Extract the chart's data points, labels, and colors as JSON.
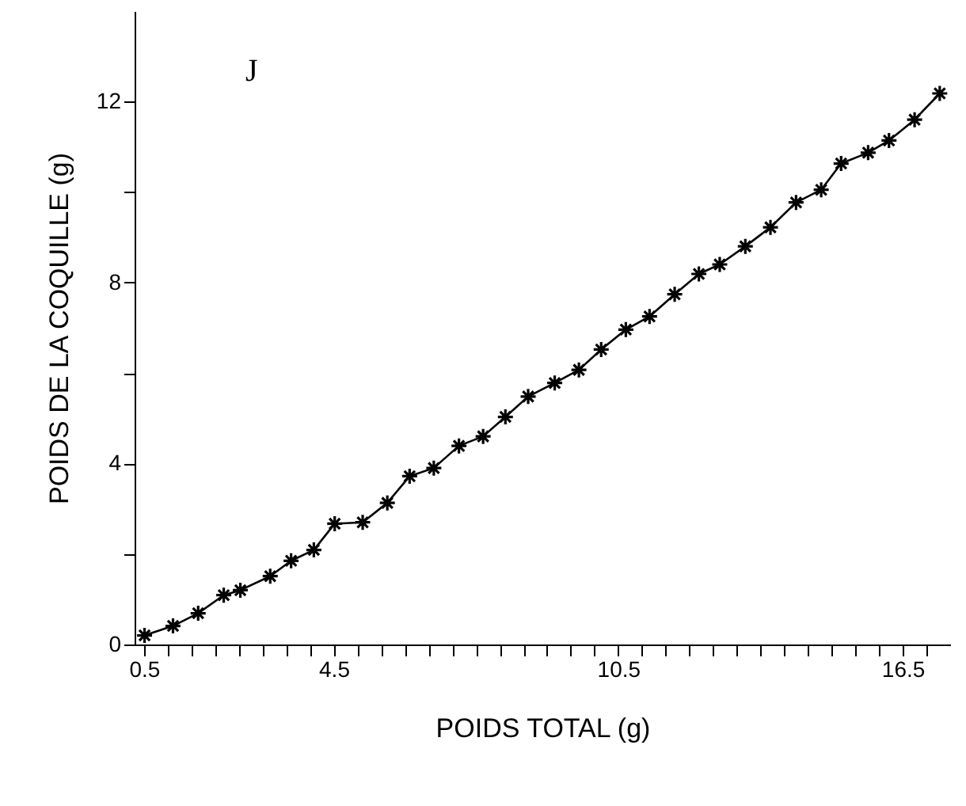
{
  "chart_data": {
    "type": "line",
    "xlabel": "POIDS TOTAL (g)",
    "ylabel": "POIDS DE LA COQUILLE (g)",
    "annotations": [
      "J"
    ],
    "marker": "cross",
    "line_style": "solid",
    "color": "#000000",
    "x": [
      0.51,
      1.11,
      1.64,
      2.18,
      2.53,
      3.16,
      3.6,
      4.08,
      4.52,
      5.11,
      5.63,
      6.1,
      6.61,
      7.14,
      7.65,
      8.12,
      8.6,
      9.16,
      9.67,
      10.14,
      10.66,
      11.16,
      11.69,
      12.2,
      12.64,
      13.18,
      13.71,
      14.25,
      14.78,
      15.2,
      15.77,
      16.21,
      16.75,
      17.28
    ],
    "values": [
      0.2,
      0.41,
      0.69,
      1.09,
      1.2,
      1.51,
      1.85,
      2.09,
      2.67,
      2.7,
      3.13,
      3.72,
      3.9,
      4.39,
      4.6,
      5.03,
      5.48,
      5.78,
      6.07,
      6.52,
      6.96,
      7.25,
      7.74,
      8.19,
      8.4,
      8.8,
      9.22,
      9.77,
      10.05,
      10.63,
      10.87,
      11.14,
      11.6,
      12.18
    ],
    "xlim": [
      0.3,
      17.5
    ],
    "xticks": [
      0.5,
      {
        "value": 1,
        "label": null
      },
      {
        "value": 1.5,
        "label": null
      },
      {
        "value": 2,
        "label": null
      },
      {
        "value": 2.5,
        "label": null
      },
      {
        "value": 3,
        "label": null
      },
      {
        "value": 3.5,
        "label": null
      },
      {
        "value": 4,
        "label": null
      },
      4.5,
      {
        "value": 5,
        "label": null
      },
      {
        "value": 5.5,
        "label": null
      },
      {
        "value": 6,
        "label": null
      },
      {
        "value": 6.5,
        "label": null
      },
      {
        "value": 7,
        "label": null
      },
      {
        "value": 7.5,
        "label": null
      },
      {
        "value": 8,
        "label": null
      },
      {
        "value": 8.5,
        "label": null
      },
      {
        "value": 9,
        "label": null
      },
      {
        "value": 9.5,
        "label": null
      },
      {
        "value": 10,
        "label": null
      },
      10.5,
      {
        "value": 11,
        "label": null
      },
      {
        "value": 11.5,
        "label": null
      },
      {
        "value": 12,
        "label": null
      },
      {
        "value": 12.5,
        "label": null
      },
      {
        "value": 13,
        "label": null
      },
      {
        "value": 13.5,
        "label": null
      },
      {
        "value": 14,
        "label": null
      },
      {
        "value": 14.5,
        "label": null
      },
      {
        "value": 15,
        "label": null
      },
      {
        "value": 15.5,
        "label": null
      },
      {
        "value": 16,
        "label": null
      },
      16.5,
      {
        "value": 17,
        "label": null
      }
    ],
    "ylim": [
      0,
      14
    ],
    "yticks": [
      0,
      {
        "value": 2,
        "label": null
      },
      4,
      {
        "value": 6,
        "label": null
      },
      8,
      {
        "value": 10,
        "label": null
      },
      12
    ],
    "grid": false
  }
}
